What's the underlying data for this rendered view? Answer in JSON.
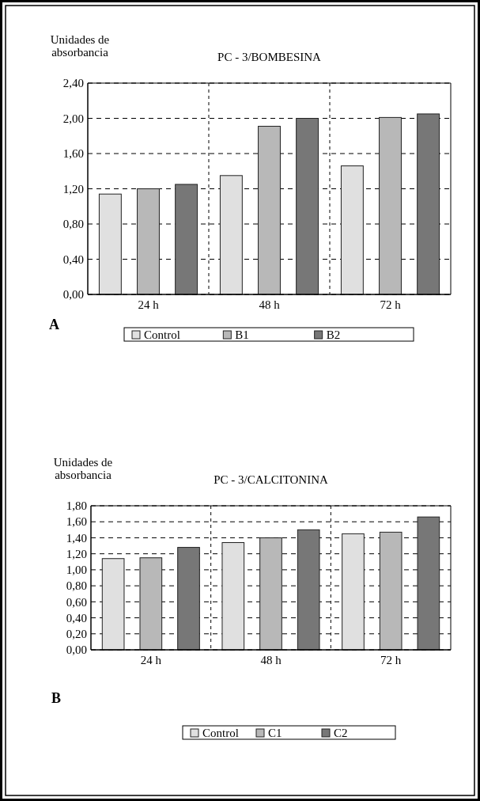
{
  "chart_data": [
    {
      "type": "bar",
      "title": "PC - 3/BOMBESINA",
      "ylabel": "Unidades de absorbancia",
      "categories": [
        "24 h",
        "48 h",
        "72 h"
      ],
      "series": [
        {
          "name": "Control",
          "color": "#e0e0e0",
          "values": [
            1.14,
            1.35,
            1.46
          ]
        },
        {
          "name": "B1",
          "color": "#b8b8b8",
          "values": [
            1.2,
            1.91,
            2.01
          ]
        },
        {
          "name": "B2",
          "color": "#777777",
          "values": [
            1.25,
            2.0,
            2.05
          ]
        }
      ],
      "ylim": [
        0,
        2.4
      ],
      "yticks": [
        {
          "value": 0,
          "label": "0,00"
        },
        {
          "value": 0.4,
          "label": "0,40"
        },
        {
          "value": 0.8,
          "label": "0,80"
        },
        {
          "value": 1.2,
          "label": "1,20"
        },
        {
          "value": 1.6,
          "label": "1,60"
        },
        {
          "value": 2.0,
          "label": "2,00"
        },
        {
          "value": 2.4,
          "label": "2,40"
        }
      ],
      "grid": true,
      "legend": "bottom",
      "annotations": [
        "A"
      ]
    },
    {
      "type": "bar",
      "title": "PC - 3/CALCITONINA",
      "ylabel": "Unidades de absorbancia",
      "categories": [
        "24 h",
        "48 h",
        "72 h"
      ],
      "series": [
        {
          "name": "Control",
          "color": "#e0e0e0",
          "values": [
            1.14,
            1.34,
            1.45
          ]
        },
        {
          "name": "C1",
          "color": "#b8b8b8",
          "values": [
            1.15,
            1.4,
            1.47
          ]
        },
        {
          "name": "C2",
          "color": "#777777",
          "values": [
            1.28,
            1.5,
            1.66
          ]
        }
      ],
      "ylim": [
        0,
        1.8
      ],
      "yticks": [
        {
          "value": 0,
          "label": "0,00"
        },
        {
          "value": 0.2,
          "label": "0,20"
        },
        {
          "value": 0.4,
          "label": "0,40"
        },
        {
          "value": 0.6,
          "label": "0,60"
        },
        {
          "value": 0.8,
          "label": "0,80"
        },
        {
          "value": 1.0,
          "label": "1,00"
        },
        {
          "value": 1.2,
          "label": "1,20"
        },
        {
          "value": 1.4,
          "label": "1,40"
        },
        {
          "value": 1.6,
          "label": "1,60"
        },
        {
          "value": 1.8,
          "label": "1,80"
        }
      ],
      "grid": true,
      "legend": "bottom",
      "annotations": [
        "B"
      ]
    }
  ]
}
